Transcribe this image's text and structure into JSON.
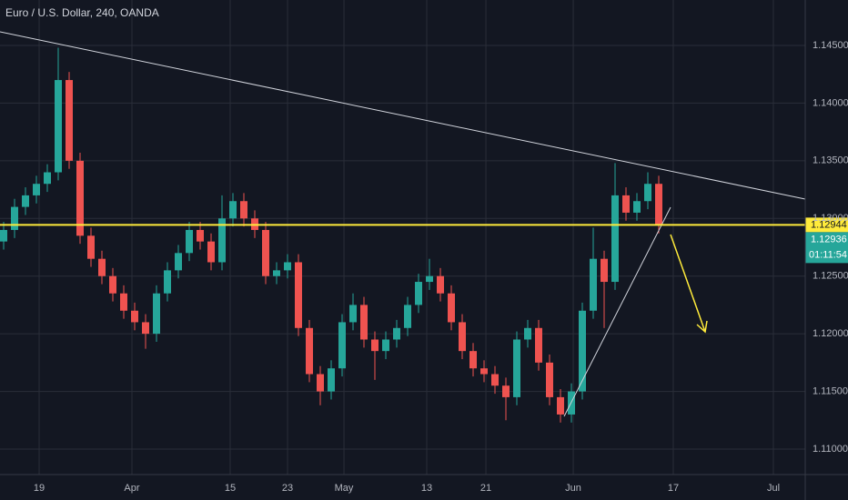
{
  "chart_data": {
    "type": "candlestick",
    "title": "Euro / U.S. Dollar, 240, OANDA",
    "up_color": "#26a69a",
    "down_color": "#ef5350",
    "grid": true,
    "xlim": [
      -0.333,
      73.417
    ],
    "xticks": [
      {
        "value": 3.25,
        "label": "19"
      },
      {
        "value": 11.75,
        "label": "Apr"
      },
      {
        "value": 20.75,
        "label": "15"
      },
      {
        "value": 26,
        "label": "23"
      },
      {
        "value": 31.17,
        "label": "May"
      },
      {
        "value": 38.75,
        "label": "13"
      },
      {
        "value": 44.17,
        "label": "21"
      },
      {
        "value": 52.17,
        "label": "Jun"
      },
      {
        "value": 61.33,
        "label": "17"
      },
      {
        "value": 70.5,
        "label": "Jul"
      }
    ],
    "ylim": [
      1.10795,
      1.14894
    ],
    "yticks": [
      {
        "value": 1.11,
        "label": "1.11000"
      },
      {
        "value": 1.115,
        "label": "1.11500"
      },
      {
        "value": 1.12,
        "label": "1.12000"
      },
      {
        "value": 1.125,
        "label": "1.12500"
      },
      {
        "value": 1.13,
        "label": "1.13000"
      },
      {
        "value": 1.135,
        "label": "1.13500"
      },
      {
        "value": 1.14,
        "label": "1.14000"
      },
      {
        "value": 1.145,
        "label": "1.14500"
      }
    ],
    "open": [
      1.128,
      1.129,
      1.131,
      1.132,
      1.133,
      1.134,
      1.142,
      1.135,
      1.1285,
      1.1265,
      1.125,
      1.1235,
      1.122,
      1.121,
      1.12,
      1.1235,
      1.1255,
      1.127,
      1.129,
      1.128,
      1.1262,
      1.13,
      1.1315,
      1.13,
      1.129,
      1.125,
      1.1255,
      1.1262,
      1.1205,
      1.1165,
      1.115,
      1.117,
      1.121,
      1.1225,
      1.1195,
      1.1185,
      1.1195,
      1.1205,
      1.1225,
      1.1245,
      1.125,
      1.1235,
      1.121,
      1.1185,
      1.117,
      1.1165,
      1.1155,
      1.1145,
      1.1195,
      1.1205,
      1.1175,
      1.1145,
      1.113,
      1.115,
      1.122,
      1.1265,
      1.1245,
      1.132,
      1.1305,
      1.1315,
      1.133
    ],
    "high": [
      1.1297,
      1.1317,
      1.1327,
      1.1337,
      1.1347,
      1.1448,
      1.1427,
      1.1357,
      1.1292,
      1.1272,
      1.1257,
      1.1242,
      1.1227,
      1.1217,
      1.1242,
      1.1262,
      1.1277,
      1.1297,
      1.1297,
      1.1287,
      1.132,
      1.1322,
      1.1322,
      1.1307,
      1.1297,
      1.1262,
      1.1269,
      1.1269,
      1.1212,
      1.1172,
      1.1177,
      1.1217,
      1.1235,
      1.1232,
      1.1202,
      1.1202,
      1.1212,
      1.1232,
      1.1252,
      1.1265,
      1.1257,
      1.1242,
      1.1217,
      1.1192,
      1.1177,
      1.1172,
      1.1162,
      1.1202,
      1.1212,
      1.1212,
      1.1182,
      1.1152,
      1.1157,
      1.1227,
      1.1292,
      1.1272,
      1.1348,
      1.1327,
      1.1322,
      1.134,
      1.1337
    ],
    "low": [
      1.1273,
      1.1283,
      1.1303,
      1.1313,
      1.1323,
      1.1333,
      1.1343,
      1.1278,
      1.1258,
      1.1243,
      1.1228,
      1.1213,
      1.1203,
      1.1187,
      1.1193,
      1.1228,
      1.1248,
      1.1263,
      1.1273,
      1.1255,
      1.1255,
      1.1293,
      1.1293,
      1.1283,
      1.1243,
      1.1243,
      1.1248,
      1.1198,
      1.1158,
      1.1138,
      1.1143,
      1.1163,
      1.1203,
      1.1188,
      1.116,
      1.1178,
      1.1188,
      1.1198,
      1.1218,
      1.1238,
      1.1228,
      1.1203,
      1.1178,
      1.1163,
      1.1158,
      1.1148,
      1.1125,
      1.1138,
      1.1188,
      1.1168,
      1.1138,
      1.1123,
      1.1123,
      1.1143,
      1.1213,
      1.1205,
      1.1238,
      1.1298,
      1.1298,
      1.1308,
      1.1287
    ],
    "close": [
      1.129,
      1.131,
      1.132,
      1.133,
      1.134,
      1.142,
      1.135,
      1.1285,
      1.1265,
      1.125,
      1.1235,
      1.122,
      1.121,
      1.12,
      1.1235,
      1.1255,
      1.127,
      1.129,
      1.128,
      1.1262,
      1.13,
      1.1315,
      1.13,
      1.129,
      1.125,
      1.1255,
      1.1262,
      1.1205,
      1.1165,
      1.115,
      1.117,
      1.121,
      1.1225,
      1.1195,
      1.1185,
      1.1195,
      1.1205,
      1.1225,
      1.1245,
      1.125,
      1.1235,
      1.121,
      1.1185,
      1.117,
      1.1165,
      1.1155,
      1.1145,
      1.1195,
      1.1205,
      1.1175,
      1.1145,
      1.113,
      1.115,
      1.122,
      1.1265,
      1.1245,
      1.132,
      1.1305,
      1.1315,
      1.133,
      1.1294
    ],
    "price_line": {
      "value": 1.12944,
      "label": "1.12944",
      "color": "#ffeb3b"
    },
    "last_price": {
      "value": 1.12936,
      "label": "1.12936"
    },
    "countdown": "01:11:54"
  }
}
